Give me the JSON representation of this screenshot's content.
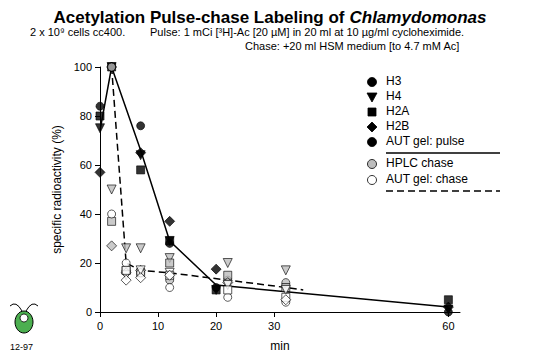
{
  "chart_data": {
    "type": "scatter",
    "title": "Acetylation Pulse-chase Labeling of",
    "title_italic": "Chlamydomonas",
    "subtitle": [
      "2 x 10⁹ cells cc400.",
      "Pulse: 1 mCi [³H]-Ac [20 µM] in 20 ml at 10 µg/ml cycloheximide.",
      "Chase: +20 ml HSM medium [to 4.7 mM Ac]"
    ],
    "footnote": "12-97",
    "x_label": "min",
    "y_label": "specific radioactivity (%)",
    "xlim": [
      0,
      62
    ],
    "xticks": [
      0,
      10,
      20,
      30,
      60
    ],
    "ylim": [
      0,
      100
    ],
    "yticks": [
      0,
      20,
      40,
      60,
      80,
      100
    ],
    "grid": false,
    "histones": [
      {
        "name": "H3",
        "marker": "circle"
      },
      {
        "name": "H4",
        "marker": "triangle-down"
      },
      {
        "name": "H2A",
        "marker": "square"
      },
      {
        "name": "H2B",
        "marker": "diamond"
      }
    ],
    "series": [
      {
        "name": "AUT gel: pulse",
        "color": "#000000",
        "points": [
          {
            "x": [
              0,
              2,
              7,
              12,
              20,
              60
            ],
            "values": [
              84,
              100,
              76,
              28,
              10,
              0
            ]
          },
          {
            "x": [
              0,
              2,
              7,
              12,
              20,
              60
            ],
            "values": [
              75,
              100,
              64,
              29,
              9,
              1
            ]
          },
          {
            "x": [
              0,
              2,
              7,
              12,
              20,
              60
            ],
            "values": [
              80,
              100,
              58,
              29,
              9,
              5
            ]
          },
          {
            "x": [
              0,
              2,
              7,
              12,
              20,
              60
            ],
            "values": [
              57,
              100,
              65,
              37,
              17.5,
              2
            ]
          }
        ],
        "line": {
          "line_style": "solid",
          "x": [
            0,
            2,
            7,
            12,
            20,
            60
          ],
          "values": [
            74,
            100,
            66,
            29,
            11,
            2
          ]
        }
      },
      {
        "name": "HPLC chase",
        "color": "#bdbdbd",
        "points": [
          {
            "x": [
              2,
              7,
              12,
              22,
              32
            ],
            "values": [
              100,
              17,
              13,
              13,
              12
            ]
          },
          {
            "x": [
              2,
              4.5,
              7,
              12,
              22,
              32
            ],
            "values": [
              50,
              26,
              26,
              22,
              20,
              17
            ]
          },
          {
            "x": [
              2,
              4.5,
              7,
              12,
              22,
              32
            ],
            "values": [
              37,
              17,
              16,
              20,
              15,
              10
            ]
          },
          {
            "x": [
              2,
              4.5,
              7,
              22
            ],
            "values": [
              27,
              16,
              17,
              12
            ]
          }
        ]
      },
      {
        "name": "AUT gel: chase",
        "color": "#ffffff",
        "points": [
          {
            "x": [
              2,
              4.5,
              7,
              12,
              22,
              32
            ],
            "values": [
              40,
              20,
              16,
              10,
              6,
              4
            ]
          },
          {
            "x": [
              4.5,
              7,
              12,
              22,
              32
            ],
            "values": [
              15,
              17,
              16,
              11,
              9
            ]
          },
          {
            "x": [
              4.5,
              12,
              22,
              32
            ],
            "values": [
              17,
              15,
              9,
              6
            ]
          },
          {
            "x": [
              4.5,
              7,
              12,
              32
            ],
            "values": [
              13,
              14,
              15,
              5
            ]
          }
        ],
        "line": {
          "line_style": "dashed",
          "x": [
            2,
            4.5,
            7,
            12,
            22,
            32,
            35
          ],
          "values": [
            100,
            20,
            17,
            16,
            13,
            10,
            9
          ]
        }
      }
    ]
  }
}
